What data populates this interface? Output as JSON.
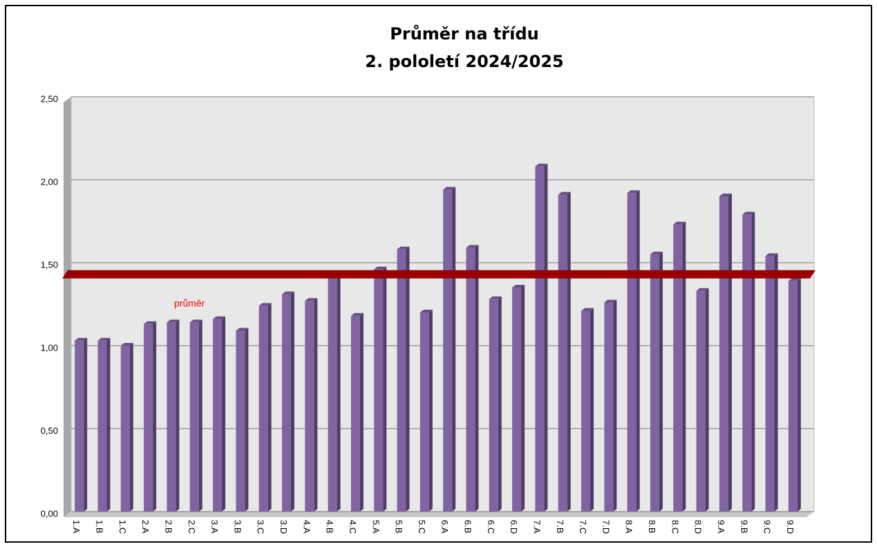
{
  "chart_data": {
    "type": "bar",
    "title": "Průměr na třídu",
    "subtitle": "2. pololetí 2024/2025",
    "categories": [
      "1.A",
      "1.B",
      "1.C",
      "2.A",
      "2.B",
      "2.C",
      "3.A",
      "3.B",
      "3.C",
      "3.D",
      "4.A",
      "4.B",
      "4.C",
      "5.A",
      "5.B",
      "5.C",
      "6.A",
      "6.B",
      "6.C",
      "6.D",
      "7.A",
      "7.B",
      "7.C",
      "7.D",
      "8.A",
      "8.B",
      "8.C",
      "8.D",
      "9.A",
      "9.B",
      "9.C",
      "9.D"
    ],
    "values": [
      1.03,
      1.03,
      1.0,
      1.13,
      1.14,
      1.14,
      1.16,
      1.09,
      1.24,
      1.31,
      1.27,
      1.43,
      1.18,
      1.46,
      1.58,
      1.2,
      1.94,
      1.59,
      1.28,
      1.35,
      2.08,
      1.91,
      1.21,
      1.26,
      1.92,
      1.55,
      1.73,
      1.33,
      1.9,
      1.79,
      1.54,
      1.39
    ],
    "color": "#8064a2",
    "ylim": [
      0,
      2.5
    ],
    "yticks": [
      {
        "value": 0,
        "label": "0,00"
      },
      {
        "value": 0.5,
        "label": "0,50"
      },
      {
        "value": 1,
        "label": "1,00"
      },
      {
        "value": 1.5,
        "label": "1,50"
      },
      {
        "value": 2,
        "label": "2,00"
      },
      {
        "value": 2.5,
        "label": "2,50"
      }
    ],
    "grid": true,
    "average": {
      "label": "průměr",
      "value": 1.43,
      "color": "#990000"
    }
  }
}
